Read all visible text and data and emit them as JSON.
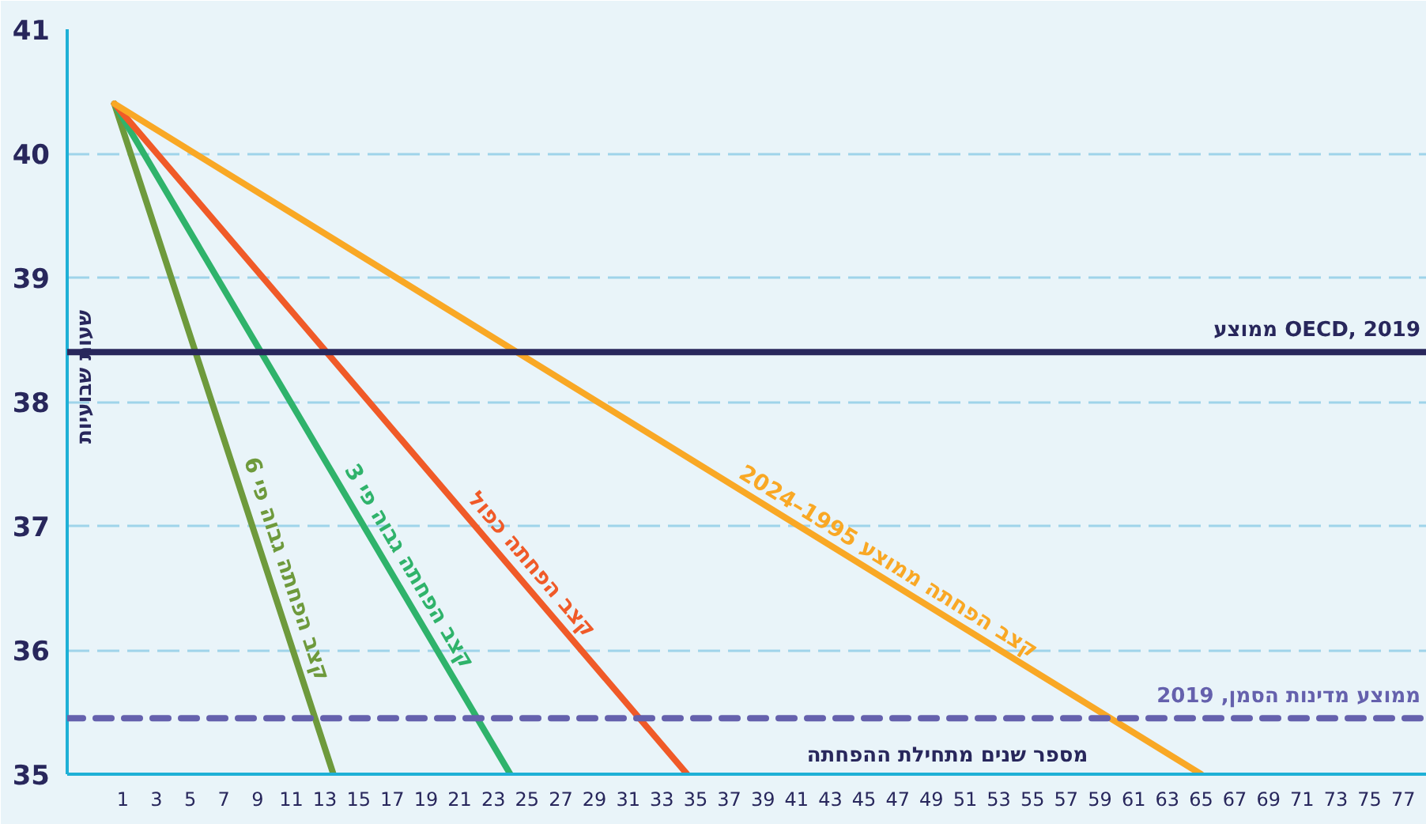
{
  "chart_data": {
    "type": "line",
    "xlabel": "מספר שנים  מתחילת ההפחתה",
    "ylabel": "שעות שבועיות",
    "xlim": [
      -2.3,
      78.4
    ],
    "ylim": [
      35,
      41
    ],
    "xticks": [
      1,
      3,
      5,
      7,
      9,
      11,
      13,
      15,
      17,
      19,
      21,
      23,
      25,
      27,
      29,
      31,
      33,
      35,
      37,
      39,
      41,
      43,
      45,
      47,
      49,
      51,
      53,
      55,
      57,
      59,
      61,
      63,
      65,
      67,
      69,
      71,
      73,
      75,
      77
    ],
    "yticks": [
      35,
      36,
      37,
      38,
      39,
      40,
      41
    ],
    "grid": "y",
    "legend": false,
    "marker": "none",
    "line_style": "solid",
    "series": [
      {
        "name": "קצב הפחתה גבוה פי 6",
        "color": "#6e9a3c",
        "x": [
          0.5,
          13.5
        ],
        "values": [
          40.4,
          35
        ]
      },
      {
        "name": "קצב הפחתה גבוה פי 3",
        "color": "#2fb36b",
        "x": [
          0.5,
          24
        ],
        "values": [
          40.4,
          35
        ]
      },
      {
        "name": "קצב הפחתה כפול",
        "color": "#f05a28",
        "x": [
          0.5,
          34.5
        ],
        "values": [
          40.4,
          35
        ]
      },
      {
        "name": "קצב הפחתה ממוצע 1995–2024",
        "color": "#f9a825",
        "x": [
          0.5,
          65
        ],
        "values": [
          40.4,
          35
        ]
      }
    ],
    "ref_lines": [
      {
        "axis": "y",
        "value": 38.4,
        "label": "ממוצע OECD, 2019",
        "color": "#28275c",
        "line_style": "solid"
      },
      {
        "axis": "y",
        "value": 35.45,
        "label": "ממוצע מדינות הסמן, 2019",
        "color": "#6561ad",
        "line_style": "dashed"
      }
    ]
  }
}
